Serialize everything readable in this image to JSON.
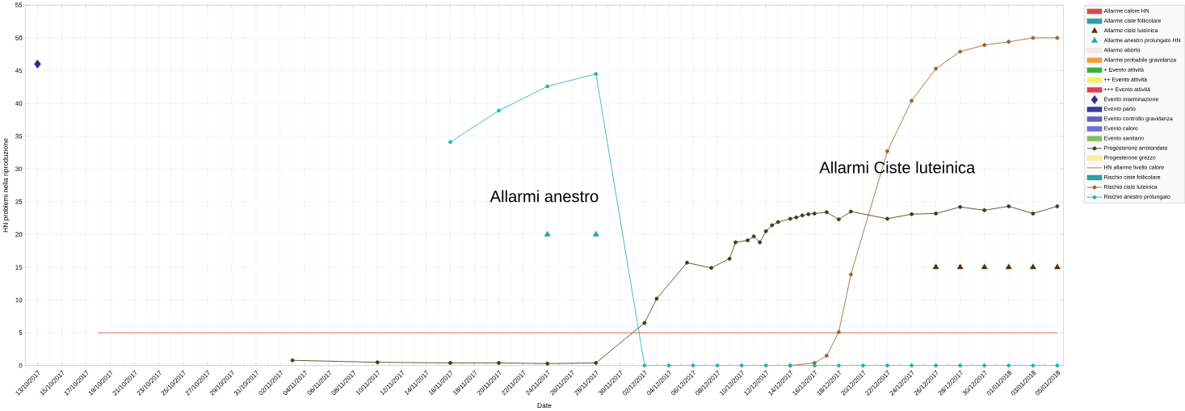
{
  "chart_data": {
    "type": "line",
    "xlabel": "Date",
    "ylabel": "HN problemi nella riproduzione",
    "xlim": [
      "2017-10-12",
      "2018-01-05T12:00"
    ],
    "ylim": [
      0,
      55
    ],
    "yticks": [
      0,
      5,
      10,
      15,
      20,
      25,
      30,
      35,
      40,
      45,
      50,
      55
    ],
    "xticks": [
      {
        "value": "2017-10-13",
        "label": "13/10/2017"
      },
      {
        "value": "2017-10-15",
        "label": "15/10/2017"
      },
      {
        "value": "2017-10-17",
        "label": "17/10/2017"
      },
      {
        "value": "2017-10-19",
        "label": "19/10/2017"
      },
      {
        "value": "2017-10-21",
        "label": "21/10/2017"
      },
      {
        "value": "2017-10-23",
        "label": "23/10/2017"
      },
      {
        "value": "2017-10-25",
        "label": "25/10/2017"
      },
      {
        "value": "2017-10-27",
        "label": "27/10/2017"
      },
      {
        "value": "2017-10-29",
        "label": "29/10/2017"
      },
      {
        "value": "2017-10-31",
        "label": "31/10/2017"
      },
      {
        "value": "2017-11-02",
        "label": "02/11/2017"
      },
      {
        "value": "2017-11-04",
        "label": "04/11/2017"
      },
      {
        "value": "2017-11-06",
        "label": "06/11/2017"
      },
      {
        "value": "2017-11-08",
        "label": "08/11/2017"
      },
      {
        "value": "2017-11-10",
        "label": "10/11/2017"
      },
      {
        "value": "2017-11-12",
        "label": "12/11/2017"
      },
      {
        "value": "2017-11-14",
        "label": "14/11/2017"
      },
      {
        "value": "2017-11-16",
        "label": "16/11/2017"
      },
      {
        "value": "2017-11-18",
        "label": "18/11/2017"
      },
      {
        "value": "2017-11-20",
        "label": "20/11/2017"
      },
      {
        "value": "2017-11-22",
        "label": "22/11/2017"
      },
      {
        "value": "2017-11-24",
        "label": "24/11/2017"
      },
      {
        "value": "2017-11-26",
        "label": "26/11/2017"
      },
      {
        "value": "2017-11-28",
        "label": "28/11/2017"
      },
      {
        "value": "2017-11-30",
        "label": "30/11/2017"
      },
      {
        "value": "2017-12-02",
        "label": "02/12/2017"
      },
      {
        "value": "2017-12-04",
        "label": "04/12/2017"
      },
      {
        "value": "2017-12-06",
        "label": "06/12/2017"
      },
      {
        "value": "2017-12-08",
        "label": "08/12/2017"
      },
      {
        "value": "2017-12-10",
        "label": "10/12/2017"
      },
      {
        "value": "2017-12-12",
        "label": "12/12/2017"
      },
      {
        "value": "2017-12-14",
        "label": "14/12/2017"
      },
      {
        "value": "2017-12-16",
        "label": "16/12/2017"
      },
      {
        "value": "2017-12-18",
        "label": "18/12/2017"
      },
      {
        "value": "2017-12-20",
        "label": "20/12/2017"
      },
      {
        "value": "2017-12-22",
        "label": "22/12/2017"
      },
      {
        "value": "2017-12-24",
        "label": "24/12/2017"
      },
      {
        "value": "2017-12-26",
        "label": "26/12/2017"
      },
      {
        "value": "2017-12-28",
        "label": "28/12/2017"
      },
      {
        "value": "2017-12-30",
        "label": "30/12/2017"
      },
      {
        "value": "2018-01-01",
        "label": "01/01/2018"
      },
      {
        "value": "2018-01-03",
        "label": "03/01/2018"
      },
      {
        "value": "2018-01-05",
        "label": "05/01/2018"
      }
    ],
    "grid": true,
    "legend": "right",
    "annotations": [
      "Allarmi anestro",
      "Allarmi Ciste luteinica"
    ],
    "series": [
      {
        "name": "Allarme calore HN",
        "color": "#d94a4a"
      },
      {
        "name": "Allarme ciste follicolare",
        "color": "#2a9fa8"
      },
      {
        "name": "Allarme ciste luteinica",
        "color": "#5a2a10",
        "type": "scatter",
        "marker": "triangle",
        "x": [
          "2017-12-26",
          "2017-12-28",
          "2017-12-30",
          "2018-01-01",
          "2018-01-03",
          "2018-01-05"
        ],
        "values": [
          15,
          15,
          15,
          15,
          15,
          15
        ]
      },
      {
        "name": "Allarme anestro prolungato HN",
        "color": "#1aa6a0",
        "type": "scatter",
        "marker": "triangle",
        "x": [
          "2017-11-24",
          "2017-11-28"
        ],
        "values": [
          20,
          20
        ]
      },
      {
        "name": "Allarme aborto",
        "color": "#f3e9e0"
      },
      {
        "name": "Allarme probabile gravidanza",
        "color": "#f0a040"
      },
      {
        "name": "+ Evento attività",
        "color": "#3cb043"
      },
      {
        "name": "++ Evento attività",
        "color": "#f0f060"
      },
      {
        "name": "+++ Evento attività",
        "color": "#e04050"
      },
      {
        "name": "Evento inseminazione",
        "color": "#2e2c8c",
        "type": "scatter",
        "marker": "diamond",
        "x": [
          "2017-10-13"
        ],
        "values": [
          46
        ]
      },
      {
        "name": "Evento parto",
        "color": "#3a3aa0"
      },
      {
        "name": "Evento controllo gravidanza",
        "color": "#6060c0"
      },
      {
        "name": "Evento calore",
        "color": "#7070d0"
      },
      {
        "name": "Evento sanitario",
        "color": "#80c060"
      },
      {
        "name": "Progesterone arrotondato",
        "color": "#3b3f1f",
        "marker": "circle",
        "x": [
          "2017-11-03",
          "2017-11-10",
          "2017-11-16",
          "2017-11-20",
          "2017-11-24",
          "2017-11-28",
          "2017-12-02",
          "2017-12-03",
          "2017-12-05T12:00",
          "2017-12-07T12:00",
          "2017-12-09",
          "2017-12-09T12:00",
          "2017-12-10T12:00",
          "2017-12-11",
          "2017-12-11T12:00",
          "2017-12-12",
          "2017-12-12T12:00",
          "2017-12-13",
          "2017-12-14",
          "2017-12-14T12:00",
          "2017-12-15",
          "2017-12-15T12:00",
          "2017-12-16",
          "2017-12-17",
          "2017-12-18",
          "2017-12-19",
          "2017-12-22",
          "2017-12-24",
          "2017-12-26",
          "2017-12-28",
          "2017-12-30",
          "2018-01-01",
          "2018-01-03",
          "2018-01-05"
        ],
        "values": [
          0.8,
          0.5,
          0.4,
          0.4,
          0.3,
          0.4,
          6.5,
          10.2,
          15.7,
          14.9,
          16.3,
          18.8,
          19.1,
          19.7,
          18.8,
          20.5,
          21.4,
          21.9,
          22.4,
          22.6,
          22.9,
          23.1,
          23.2,
          23.4,
          22.3,
          23.5,
          22.4,
          23.1,
          23.2,
          24.2,
          23.7,
          24.3,
          23.2,
          24.3
        ]
      },
      {
        "name": "Progesterone grezzo",
        "color": "#f0f0a0"
      },
      {
        "name": "HN allarme livello calore",
        "color": "#e0582a",
        "marker": "none",
        "x": [
          "2017-10-18",
          "2018-01-05"
        ],
        "values": [
          5,
          5
        ]
      },
      {
        "name": "Rischio ciste follicolare",
        "color": "#2a9fa8"
      },
      {
        "name": "Rischio ciste luteinica",
        "color": "#a0622a",
        "marker": "circle",
        "x": [
          "2017-12-14",
          "2017-12-16",
          "2017-12-17",
          "2017-12-18",
          "2017-12-19",
          "2017-12-22",
          "2017-12-24",
          "2017-12-26",
          "2017-12-28",
          "2017-12-30",
          "2018-01-01",
          "2018-01-03",
          "2018-01-05"
        ],
        "values": [
          0,
          0.4,
          1.5,
          5.1,
          13.9,
          32.7,
          40.4,
          45.3,
          47.9,
          48.9,
          49.4,
          50,
          50
        ]
      },
      {
        "name": "Rischio anestro prolungato",
        "color": "#1fb5b0",
        "marker": "circle",
        "x": [
          "2017-11-16",
          "2017-11-20",
          "2017-11-24",
          "2017-11-28",
          "2017-12-02",
          "2017-12-04",
          "2017-12-06",
          "2017-12-08",
          "2017-12-10",
          "2017-12-12",
          "2017-12-14",
          "2017-12-16",
          "2017-12-18",
          "2017-12-20",
          "2017-12-22",
          "2017-12-24",
          "2017-12-26",
          "2017-12-28",
          "2017-12-30",
          "2018-01-01",
          "2018-01-03",
          "2018-01-05"
        ],
        "values": [
          34.1,
          38.9,
          42.6,
          44.5,
          0,
          0,
          0,
          0,
          0,
          0,
          0,
          0,
          0,
          0,
          0,
          0,
          0,
          0,
          0,
          0,
          0,
          0
        ]
      }
    ]
  }
}
